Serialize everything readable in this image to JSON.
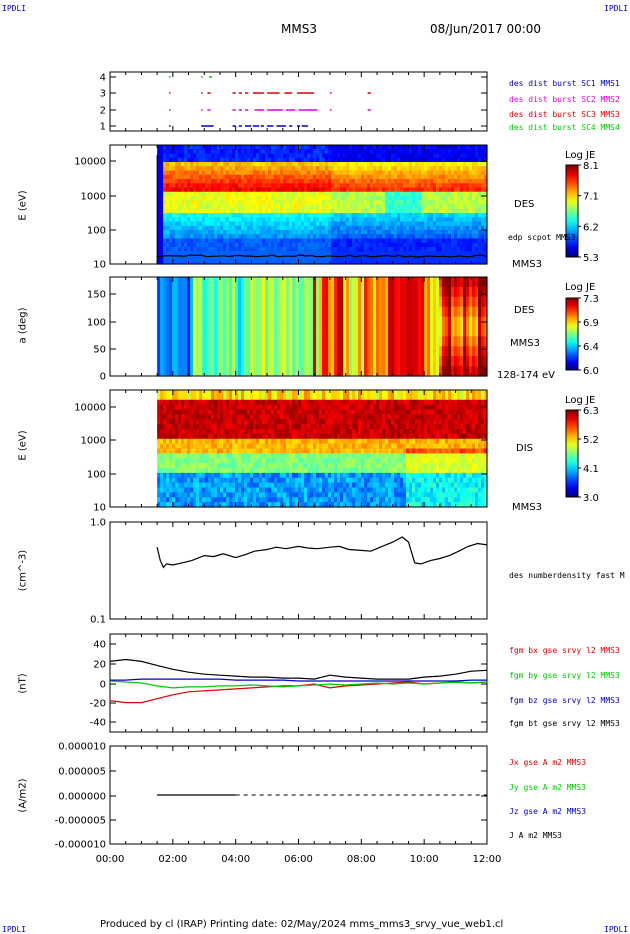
{
  "header": {
    "corner_left": "IPDLI",
    "corner_right": "IPDLI",
    "title": "MMS3",
    "datetime": "08/Jun/2017 00:00",
    "footer_left": "IPDLI",
    "footer_right": "IPDLI",
    "footer_text": "Produced by cl (IRAP)   Printing date: 02/May/2024   mms_mms3_srvy_vue_web1.cl"
  },
  "colors": {
    "blue": "#0000cc",
    "magenta": "#dd00dd",
    "red": "#dd0000",
    "green": "#00cc00",
    "black": "#000000"
  },
  "chart_data": [
    {
      "type": "scatter",
      "name": "burst",
      "yticks": [
        "4",
        "3",
        "2",
        "1"
      ],
      "xlim": [
        0,
        12
      ],
      "ylim": [
        0.6,
        4.4
      ],
      "series": [
        {
          "name": "des dist burst SC1 MMS1",
          "color": "#0000cc",
          "y": 1,
          "intervals": [
            [
              1.88,
              1.92
            ],
            [
              2.9,
              3.3
            ],
            [
              3.9,
              4.0
            ],
            [
              4.1,
              4.2
            ],
            [
              4.3,
              4.5
            ],
            [
              4.55,
              4.75
            ],
            [
              4.8,
              4.9
            ],
            [
              5.0,
              5.2
            ],
            [
              5.3,
              5.6
            ],
            [
              5.7,
              5.8
            ],
            [
              5.95,
              6.05
            ],
            [
              6.1,
              6.3
            ]
          ]
        },
        {
          "name": "des dist burst SC2 MMS2",
          "color": "#dd00dd",
          "y": 2,
          "intervals": [
            [
              1.88,
              1.92
            ],
            [
              2.9,
              2.95
            ],
            [
              3.1,
              3.2
            ],
            [
              3.9,
              4.0
            ],
            [
              4.1,
              4.2
            ],
            [
              4.3,
              4.4
            ],
            [
              4.6,
              4.9
            ],
            [
              5.0,
              5.5
            ],
            [
              5.6,
              5.9
            ],
            [
              6.0,
              6.6
            ],
            [
              7.0,
              7.05
            ],
            [
              8.2,
              8.3
            ]
          ]
        },
        {
          "name": "des dist burst SC3 MMS3",
          "color": "#dd0000",
          "y": 3,
          "intervals": [
            [
              1.88,
              1.92
            ],
            [
              2.9,
              2.95
            ],
            [
              3.1,
              3.2
            ],
            [
              3.9,
              4.0
            ],
            [
              4.1,
              4.2
            ],
            [
              4.3,
              4.4
            ],
            [
              4.55,
              4.9
            ],
            [
              5.0,
              5.4
            ],
            [
              5.55,
              5.8
            ],
            [
              5.95,
              6.5
            ],
            [
              7.0,
              7.05
            ],
            [
              8.2,
              8.3
            ]
          ]
        },
        {
          "name": "des dist burst SC4 MMS4",
          "color": "#00cc00",
          "y": 4,
          "intervals": [
            [
              1.88,
              1.92
            ],
            [
              2.9,
              2.95
            ],
            [
              3.15,
              3.25
            ]
          ]
        }
      ]
    },
    {
      "type": "heatmap",
      "name": "des-energy",
      "ylabel": "E (eV)",
      "yticks": [
        "10000",
        "1000",
        "100",
        "10"
      ],
      "ylog": true,
      "ylim": [
        10,
        30000
      ],
      "xlim": [
        0,
        12
      ],
      "data_start": 1.5,
      "colorbar": {
        "label": "Log JE",
        "ticks": [
          "8.1",
          "7.1",
          "6.2",
          "5.3"
        ],
        "min": 5.3,
        "max": 8.1
      },
      "side_label": "DES",
      "overlay_label": "edp scpot MMS3",
      "overlay_label2": "MMS3"
    },
    {
      "type": "heatmap",
      "name": "des-pitch",
      "ylabel": "a (deg)",
      "yticks": [
        "150",
        "100",
        "50",
        "0"
      ],
      "ylim": [
        0,
        180
      ],
      "xlim": [
        0,
        12
      ],
      "data_start": 1.5,
      "colorbar": {
        "label": "Log JE",
        "ticks": [
          "7.3",
          "6.9",
          "6.4",
          "6.0"
        ],
        "min": 6.0,
        "max": 7.3
      },
      "side_label": "DES",
      "side_label2": "MMS3",
      "side_label3": "128-174 eV"
    },
    {
      "type": "heatmap",
      "name": "dis-energy",
      "ylabel": "E (eV)",
      "yticks": [
        "10000",
        "1000",
        "100",
        "10"
      ],
      "ylog": true,
      "ylim": [
        10,
        30000
      ],
      "xlim": [
        0,
        12
      ],
      "data_start": 1.5,
      "colorbar": {
        "label": "Log JE",
        "ticks": [
          "6.3",
          "5.2",
          "4.1",
          "3.0"
        ],
        "min": 3.0,
        "max": 6.3
      },
      "side_label": "DIS",
      "side_label2": "MMS3"
    },
    {
      "type": "line",
      "name": "density",
      "ylabel": "(cm^-3)",
      "yticks": [
        "1.0",
        "0.1"
      ],
      "ylog": true,
      "ylim": [
        0.1,
        1.0
      ],
      "xlim": [
        0,
        12
      ],
      "series": [
        {
          "name": "des numberdensity fast M",
          "color": "#000000",
          "x": [
            1.5,
            1.6,
            1.7,
            1.8,
            2.0,
            2.3,
            2.6,
            3.0,
            3.3,
            3.6,
            4.0,
            4.3,
            4.6,
            5.0,
            5.3,
            5.6,
            6.0,
            6.3,
            6.6,
            7.0,
            7.3,
            7.6,
            8.0,
            8.3,
            8.6,
            9.0,
            9.3,
            9.5,
            9.7,
            9.9,
            10.2,
            10.5,
            10.8,
            11.1,
            11.4,
            11.7,
            12.0
          ],
          "y": [
            0.55,
            0.4,
            0.34,
            0.37,
            0.36,
            0.38,
            0.4,
            0.45,
            0.44,
            0.47,
            0.43,
            0.46,
            0.5,
            0.52,
            0.55,
            0.53,
            0.56,
            0.54,
            0.53,
            0.55,
            0.56,
            0.52,
            0.51,
            0.5,
            0.55,
            0.62,
            0.7,
            0.62,
            0.38,
            0.37,
            0.4,
            0.42,
            0.45,
            0.5,
            0.56,
            0.6,
            0.58
          ]
        }
      ]
    },
    {
      "type": "line",
      "name": "magnetic",
      "ylabel": "(nT)",
      "yticks": [
        "40",
        "20",
        "0",
        "-20",
        "-40"
      ],
      "ylim": [
        -50,
        50
      ],
      "xlim": [
        0,
        12
      ],
      "series": [
        {
          "name": "fgm bx gse srvy l2 MMS3",
          "color": "#dd0000",
          "x": [
            0,
            0.5,
            1.0,
            1.5,
            2.0,
            2.5,
            3.0,
            3.5,
            4.0,
            4.5,
            5.0,
            5.5,
            6.0,
            6.5,
            7.0,
            7.5,
            8.0,
            8.5,
            9.0,
            9.5,
            10.0,
            10.5,
            11.0,
            11.5,
            12.0
          ],
          "y": [
            -18,
            -20,
            -20,
            -16,
            -12,
            -9,
            -8,
            -7,
            -6,
            -5,
            -4,
            -3,
            -3,
            -1,
            -5,
            -3,
            -2,
            -1,
            0,
            1,
            -1,
            0,
            1,
            0,
            1
          ]
        },
        {
          "name": "fgm by gse srvy l2 MMS3",
          "color": "#00cc00",
          "x": [
            0,
            0.5,
            1.0,
            1.5,
            2.0,
            2.5,
            3.0,
            3.5,
            4.0,
            4.5,
            5.0,
            5.5,
            6.0,
            6.5,
            7.0,
            7.5,
            8.0,
            8.5,
            9.0,
            9.5,
            10.0,
            10.5,
            11.0,
            11.5,
            12.0
          ],
          "y": [
            2,
            1,
            0,
            -3,
            -5,
            -4,
            -4,
            -3,
            -3,
            -2,
            -3,
            -4,
            -3,
            -2,
            -1,
            -2,
            -1,
            0,
            -1,
            0,
            -1,
            0,
            1,
            0,
            1
          ]
        },
        {
          "name": "fgm bz gse srvy l2 MMS3",
          "color": "#0000cc",
          "x": [
            0,
            0.5,
            1.0,
            1.5,
            2.0,
            2.5,
            3.0,
            3.5,
            4.0,
            4.5,
            5.0,
            5.5,
            6.0,
            6.5,
            7.0,
            7.5,
            8.0,
            8.5,
            9.0,
            9.5,
            10.0,
            10.5,
            11.0,
            11.5,
            12.0
          ],
          "y": [
            3,
            3,
            4,
            4,
            4,
            4,
            4,
            4,
            3,
            3,
            3,
            3,
            2,
            2,
            2,
            2,
            2,
            2,
            2,
            2,
            2,
            2,
            2,
            3,
            3
          ]
        },
        {
          "name": "fgm bt gse srvy l2 MMS3",
          "color": "#000000",
          "x": [
            0,
            0.5,
            1.0,
            1.5,
            2.0,
            2.5,
            3.0,
            3.5,
            4.0,
            4.5,
            5.0,
            5.5,
            6.0,
            6.5,
            7.0,
            7.5,
            8.0,
            8.5,
            9.0,
            9.5,
            10.0,
            10.5,
            11.0,
            11.5,
            12.0
          ],
          "y": [
            22,
            24,
            22,
            18,
            14,
            11,
            9,
            8,
            7,
            6,
            6,
            5,
            5,
            4,
            8,
            6,
            5,
            4,
            4,
            4,
            6,
            7,
            9,
            12,
            13
          ]
        }
      ]
    },
    {
      "type": "line",
      "name": "current",
      "ylabel": "(A/m2)",
      "yticks": [
        "0.000010",
        "0.000005",
        "0.000000",
        "-0.000005",
        "-0.000010"
      ],
      "ylim": [
        -1e-05,
        1e-05
      ],
      "xlim": [
        0,
        12
      ],
      "series": [
        {
          "name": "Jx gse A m2 MMS3",
          "color": "#dd0000",
          "x": [],
          "y": []
        },
        {
          "name": "Jy gse A m2 MMS3",
          "color": "#00cc00",
          "x": [],
          "y": []
        },
        {
          "name": "Jz gse A m2 MMS3",
          "color": "#0000cc",
          "x": [],
          "y": []
        },
        {
          "name": "J A m2 MMS3",
          "color": "#000000",
          "x": [
            1.5,
            4.0
          ],
          "y": [
            0,
            0
          ]
        }
      ],
      "xticks": [
        "00:00",
        "02:00",
        "04:00",
        "06:00",
        "08:00",
        "10:00",
        "12:00"
      ]
    }
  ]
}
